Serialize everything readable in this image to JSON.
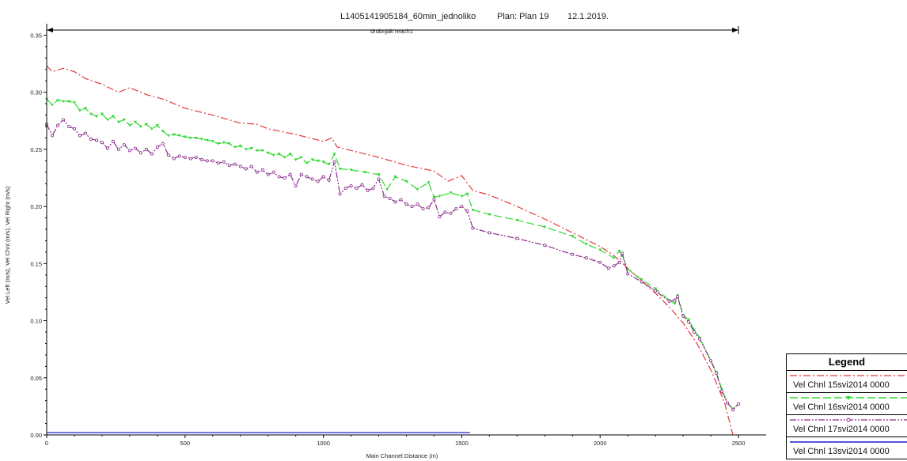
{
  "chart_data": {
    "type": "line",
    "title": "L1405141905184_60min_jednoliko",
    "plan": "Plan: Plan 19",
    "date": "12.1.2019.",
    "reach_label": "drobnjak reach1",
    "xlabel": "Main Channel Distance (m)",
    "ylabel": "Vel Left (m/s), Vel Chnl (m/s), Vel Right (m/s)",
    "xlim": [
      0,
      2600
    ],
    "ylim": [
      0,
      0.36
    ],
    "x_ticks": [
      "0",
      "500",
      "1000",
      "1500",
      "2000",
      "2500"
    ],
    "y_ticks": [
      "0.00",
      "0.05",
      "0.10",
      "0.15",
      "0.20",
      "0.25",
      "0.30",
      "0.35"
    ],
    "reach_range": [
      0,
      2500
    ],
    "legend": {
      "title": "Legend",
      "entries": [
        "Vel Chnl 15svi2014 0000",
        "Vel Chnl 16svi2014 0000",
        "Vel Chnl 17svi2014 0000",
        "Vel Chnl 13svi2014 0000"
      ]
    },
    "series": [
      {
        "name": "Vel Chnl 15svi2014 0000",
        "color": "#e23a3a",
        "style": "dashdot",
        "x": [
          0,
          20,
          60,
          100,
          140,
          200,
          260,
          300,
          360,
          420,
          500,
          600,
          700,
          760,
          800,
          900,
          1000,
          1030,
          1050,
          1100,
          1200,
          1300,
          1400,
          1450,
          1500,
          1540,
          1600,
          1700,
          1800,
          1900,
          2000,
          2050,
          2100,
          2150,
          2200,
          2250,
          2300,
          2350,
          2400,
          2450,
          2480
        ],
        "y": [
          0.323,
          0.318,
          0.321,
          0.318,
          0.312,
          0.307,
          0.3,
          0.304,
          0.298,
          0.294,
          0.286,
          0.28,
          0.273,
          0.272,
          0.268,
          0.263,
          0.257,
          0.26,
          0.252,
          0.249,
          0.243,
          0.236,
          0.231,
          0.222,
          0.227,
          0.214,
          0.21,
          0.2,
          0.189,
          0.177,
          0.165,
          0.157,
          0.146,
          0.135,
          0.124,
          0.112,
          0.098,
          0.08,
          0.057,
          0.028,
          0.0
        ]
      },
      {
        "name": "Vel Chnl 16svi2014 0000",
        "color": "#2fd82f",
        "style": "dashed",
        "marker": "triangle",
        "x": [
          0,
          20,
          40,
          60,
          80,
          100,
          120,
          140,
          160,
          180,
          200,
          220,
          240,
          260,
          280,
          300,
          320,
          340,
          360,
          380,
          400,
          420,
          440,
          460,
          480,
          500,
          520,
          540,
          560,
          580,
          600,
          620,
          640,
          660,
          680,
          700,
          720,
          740,
          760,
          780,
          800,
          820,
          840,
          860,
          880,
          900,
          920,
          940,
          960,
          980,
          1000,
          1020,
          1040,
          1060,
          1100,
          1150,
          1200,
          1230,
          1260,
          1300,
          1340,
          1380,
          1400,
          1420,
          1460,
          1500,
          1520,
          1540,
          1600,
          1700,
          1800,
          1900,
          1950,
          2000,
          2050,
          2070,
          2080,
          2100,
          2150,
          2200,
          2250,
          2270,
          2280,
          2300,
          2320,
          2340,
          2360,
          2400,
          2420,
          2440,
          2460,
          2480,
          2500
        ],
        "y": [
          0.294,
          0.289,
          0.293,
          0.292,
          0.292,
          0.291,
          0.284,
          0.286,
          0.281,
          0.279,
          0.281,
          0.276,
          0.279,
          0.274,
          0.276,
          0.271,
          0.274,
          0.27,
          0.272,
          0.268,
          0.271,
          0.266,
          0.262,
          0.263,
          0.262,
          0.261,
          0.26,
          0.26,
          0.259,
          0.258,
          0.257,
          0.255,
          0.256,
          0.255,
          0.252,
          0.253,
          0.25,
          0.251,
          0.249,
          0.249,
          0.247,
          0.245,
          0.246,
          0.243,
          0.246,
          0.241,
          0.243,
          0.238,
          0.241,
          0.24,
          0.239,
          0.237,
          0.246,
          0.233,
          0.232,
          0.23,
          0.228,
          0.215,
          0.226,
          0.222,
          0.215,
          0.221,
          0.208,
          0.209,
          0.212,
          0.209,
          0.211,
          0.197,
          0.193,
          0.188,
          0.182,
          0.174,
          0.167,
          0.162,
          0.155,
          0.161,
          0.157,
          0.145,
          0.136,
          0.128,
          0.118,
          0.115,
          0.122,
          0.105,
          0.101,
          0.092,
          0.085,
          0.065,
          0.055,
          0.04,
          0.028,
          0.023,
          0.027
        ]
      },
      {
        "name": "Vel Chnl 17svi2014 0000",
        "color": "#8b2a8b",
        "style": "dashdotdot",
        "marker": "circle",
        "x": [
          0,
          20,
          40,
          60,
          80,
          100,
          120,
          140,
          160,
          180,
          200,
          220,
          240,
          260,
          280,
          300,
          320,
          340,
          360,
          380,
          400,
          420,
          440,
          460,
          480,
          500,
          520,
          540,
          560,
          580,
          600,
          620,
          640,
          660,
          680,
          700,
          720,
          740,
          760,
          780,
          800,
          820,
          840,
          860,
          880,
          900,
          920,
          940,
          960,
          980,
          1000,
          1020,
          1040,
          1060,
          1080,
          1100,
          1120,
          1140,
          1160,
          1180,
          1200,
          1220,
          1240,
          1260,
          1280,
          1300,
          1320,
          1340,
          1360,
          1380,
          1400,
          1420,
          1440,
          1460,
          1480,
          1500,
          1520,
          1540,
          1600,
          1700,
          1800,
          1900,
          1950,
          2000,
          2030,
          2050,
          2070,
          2080,
          2100,
          2150,
          2200,
          2250,
          2270,
          2280,
          2300,
          2320,
          2340,
          2360,
          2400,
          2420,
          2440,
          2460,
          2480,
          2500
        ],
        "y": [
          0.272,
          0.262,
          0.271,
          0.276,
          0.27,
          0.268,
          0.262,
          0.264,
          0.259,
          0.258,
          0.256,
          0.251,
          0.257,
          0.25,
          0.254,
          0.249,
          0.251,
          0.247,
          0.25,
          0.246,
          0.252,
          0.255,
          0.245,
          0.242,
          0.244,
          0.243,
          0.242,
          0.243,
          0.241,
          0.24,
          0.24,
          0.238,
          0.239,
          0.236,
          0.237,
          0.235,
          0.233,
          0.235,
          0.23,
          0.232,
          0.228,
          0.23,
          0.226,
          0.225,
          0.228,
          0.218,
          0.228,
          0.226,
          0.224,
          0.222,
          0.226,
          0.223,
          0.239,
          0.211,
          0.216,
          0.218,
          0.216,
          0.219,
          0.214,
          0.216,
          0.224,
          0.209,
          0.207,
          0.204,
          0.206,
          0.202,
          0.2,
          0.202,
          0.198,
          0.199,
          0.206,
          0.191,
          0.195,
          0.194,
          0.198,
          0.2,
          0.196,
          0.181,
          0.177,
          0.172,
          0.166,
          0.158,
          0.155,
          0.151,
          0.146,
          0.148,
          0.151,
          0.159,
          0.141,
          0.134,
          0.126,
          0.117,
          0.118,
          0.121,
          0.104,
          0.099,
          0.09,
          0.084,
          0.065,
          0.054,
          0.038,
          0.028,
          0.022,
          0.027
        ]
      },
      {
        "name": "Vel Chnl 13svi2014 0000",
        "color": "#1f1fcf",
        "style": "solid",
        "x": [
          0,
          1530
        ],
        "y": [
          0.002,
          0.002
        ]
      }
    ]
  }
}
